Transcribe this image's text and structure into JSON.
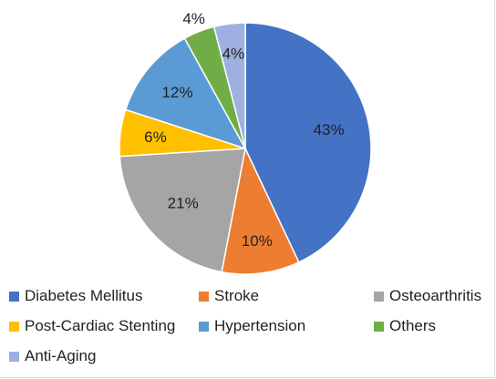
{
  "chart_data": {
    "type": "pie",
    "title": "",
    "legend_position": "bottom",
    "slices": [
      {
        "name": "Diabetes Mellitus",
        "value": 43,
        "label": "43%",
        "color": "#4472C4"
      },
      {
        "name": "Stroke",
        "value": 10,
        "label": "10%",
        "color": "#ED7D31"
      },
      {
        "name": "Osteoarthritis",
        "value": 21,
        "label": "21%",
        "color": "#A5A5A5"
      },
      {
        "name": "Post-Cardiac Stenting",
        "value": 6,
        "label": "6%",
        "color": "#FFC000"
      },
      {
        "name": "Hypertension",
        "value": 12,
        "label": "12%",
        "color": "#5B9BD5"
      },
      {
        "name": "Others",
        "value": 4,
        "label": "4%",
        "color": "#70AD47"
      },
      {
        "name": "Anti-Aging",
        "value": 4,
        "label": "4%",
        "color": "#9EB0E0"
      }
    ]
  }
}
